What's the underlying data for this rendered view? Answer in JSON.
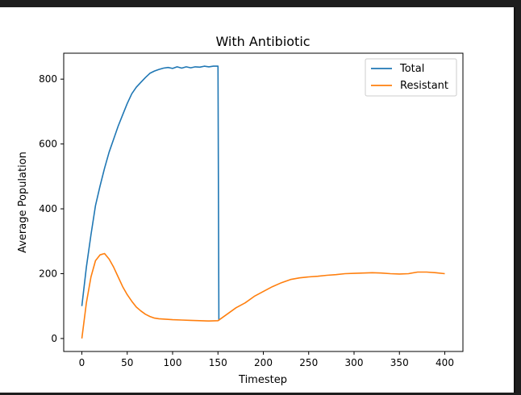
{
  "chart_data": {
    "type": "line",
    "title": "With Antibiotic",
    "xlabel": "Timestep",
    "ylabel": "Average Population",
    "xlim": [
      -20,
      420
    ],
    "ylim": [
      -40,
      880
    ],
    "x_ticks": [
      0,
      50,
      100,
      150,
      200,
      250,
      300,
      350,
      400
    ],
    "y_ticks": [
      0,
      200,
      400,
      600,
      800
    ],
    "grid": false,
    "legend_position": "top-right",
    "series": [
      {
        "name": "Total",
        "color": "#1f77b4",
        "x": [
          0,
          5,
          10,
          15,
          20,
          25,
          30,
          35,
          40,
          45,
          50,
          55,
          60,
          65,
          70,
          75,
          80,
          85,
          90,
          95,
          100,
          105,
          110,
          115,
          120,
          125,
          130,
          135,
          140,
          145,
          150,
          151
        ],
        "y": [
          100,
          220,
          320,
          410,
          470,
          525,
          575,
          615,
          655,
          690,
          725,
          755,
          775,
          790,
          805,
          818,
          825,
          830,
          834,
          836,
          833,
          838,
          834,
          838,
          835,
          838,
          837,
          840,
          838,
          840,
          840,
          55
        ]
      },
      {
        "name": "Resistant",
        "color": "#ff7f0e",
        "x": [
          0,
          5,
          10,
          15,
          20,
          25,
          30,
          35,
          40,
          45,
          50,
          55,
          60,
          65,
          70,
          75,
          80,
          85,
          90,
          100,
          110,
          120,
          130,
          140,
          150,
          160,
          170,
          180,
          190,
          200,
          210,
          220,
          230,
          240,
          250,
          260,
          270,
          280,
          290,
          300,
          310,
          320,
          330,
          340,
          350,
          360,
          370,
          380,
          390,
          400
        ],
        "y": [
          0,
          110,
          190,
          240,
          258,
          262,
          245,
          220,
          190,
          160,
          135,
          115,
          97,
          85,
          75,
          68,
          63,
          61,
          60,
          58,
          57,
          56,
          55,
          54,
          55,
          75,
          95,
          110,
          130,
          145,
          160,
          172,
          182,
          187,
          190,
          192,
          195,
          197,
          200,
          201,
          202,
          203,
          202,
          200,
          199,
          200,
          205,
          205,
          203,
          200
        ]
      }
    ]
  }
}
